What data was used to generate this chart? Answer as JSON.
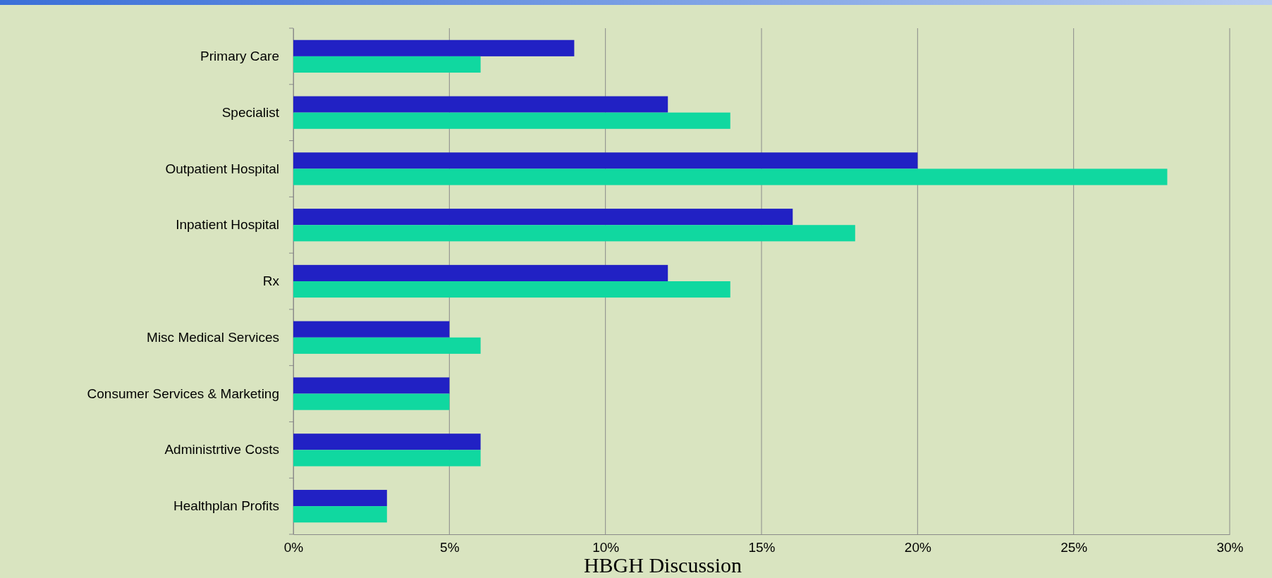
{
  "chart_data": {
    "type": "bar",
    "orientation": "horizontal",
    "categories": [
      "Primary Care",
      "Specialist",
      "Outpatient Hospital",
      "Inpatient Hospital",
      "Rx",
      "Misc Medical Services",
      "Consumer Services & Marketing",
      "Administrtive Costs",
      "Healthplan Profits"
    ],
    "series": [
      {
        "color": "#2121c4",
        "values": [
          9,
          12,
          20,
          16,
          12,
          5,
          5,
          6,
          3
        ]
      },
      {
        "color": "#10d8a0",
        "values": [
          6,
          14,
          28,
          18,
          14,
          6,
          5,
          6,
          3
        ]
      }
    ],
    "xlim": [
      0,
      30
    ],
    "xticks": [
      {
        "value": 0,
        "label": "0%"
      },
      {
        "value": 5,
        "label": "5%"
      },
      {
        "value": 10,
        "label": "10%"
      },
      {
        "value": 15,
        "label": "15%"
      },
      {
        "value": 20,
        "label": "20%"
      },
      {
        "value": 25,
        "label": "25%"
      },
      {
        "value": 30,
        "label": "30%"
      }
    ],
    "grid": "x",
    "annotations": [
      "HBGH Discussion"
    ]
  }
}
